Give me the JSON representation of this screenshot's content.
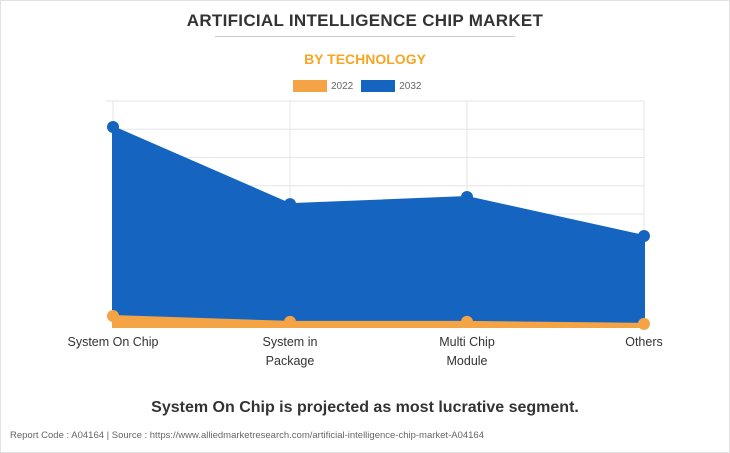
{
  "title": "ARTIFICIAL INTELLIGENCE CHIP MARKET",
  "subtitle": "BY TECHNOLOGY",
  "colors": {
    "2022": "#f5a445",
    "2032": "#1565c0"
  },
  "chart_data": {
    "type": "area",
    "title": "ARTIFICIAL INTELLIGENCE CHIP MARKET",
    "subtitle": "BY TECHNOLOGY",
    "categories": [
      "System On Chip",
      "System in Package",
      "Multi Chip Module",
      "Others"
    ],
    "category_lines": [
      [
        "System On Chip"
      ],
      [
        "System in",
        "Package"
      ],
      [
        "Multi Chip",
        "Module"
      ],
      [
        "Others"
      ]
    ],
    "series": [
      {
        "name": "2032",
        "values": [
          70.8,
          43.5,
          46.0,
          32.2
        ]
      },
      {
        "name": "2022",
        "values": [
          3.9,
          1.8,
          1.8,
          1.1
        ]
      }
    ],
    "ylim": [
      0,
      80
    ],
    "xlabel": "",
    "ylabel": "",
    "grid": true,
    "legend": "top-center"
  },
  "footer": {
    "message": "System On Chip is projected as most lucrative segment.",
    "source": "Report Code : A04164  |  Source : https://www.alliedmarketresearch.com/artificial-intelligence-chip-market-A04164"
  }
}
